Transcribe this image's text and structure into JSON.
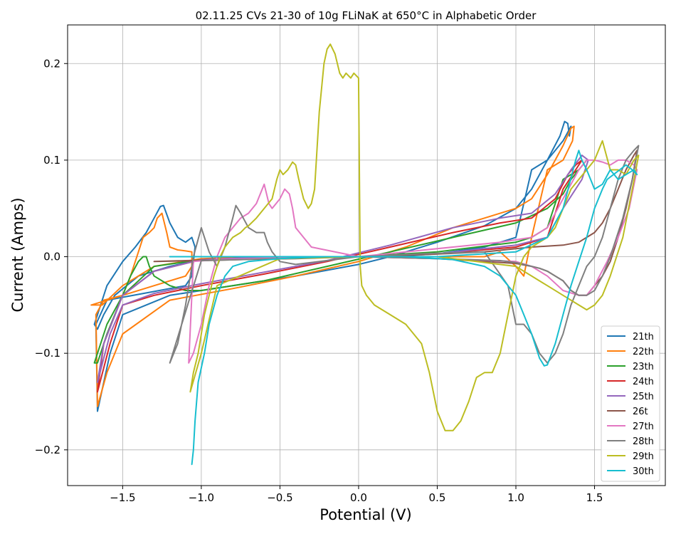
{
  "chart_data": {
    "type": "line",
    "title": "02.11.25 CVs 21-30 of 10g FLiNaK at 650°C in Alphabetic Order",
    "xlabel": "Potential (V)",
    "ylabel": "Current (Amps)",
    "xlim": [
      -1.85,
      1.95
    ],
    "ylim": [
      -0.237,
      0.24
    ],
    "x_ticks": [
      -1.5,
      -1.0,
      -0.5,
      0.0,
      0.5,
      1.0,
      1.5
    ],
    "x_tick_labels": [
      "−1.5",
      "−1.0",
      "−0.5",
      "0.0",
      "0.5",
      "1.0",
      "1.5"
    ],
    "y_ticks": [
      -0.2,
      -0.1,
      0.0,
      0.1,
      0.2
    ],
    "y_tick_labels": [
      "−0.2",
      "−0.1",
      "0.0",
      "0.1",
      "0.2"
    ],
    "grid": true,
    "legend_position": "lower-right",
    "series": [
      {
        "name": "21th",
        "color": "#1f77b4",
        "x": [
          -1.68,
          -1.6,
          -1.5,
          -1.42,
          -1.35,
          -1.3,
          -1.26,
          -1.24,
          -1.2,
          -1.15,
          -1.1,
          -1.06,
          -1.04,
          -1.06,
          -1.1,
          -1.3,
          -1.5,
          -1.6,
          -1.67,
          -1.66,
          -1.62,
          -1.58,
          -1.5,
          -1.2,
          -0.8,
          -0.4,
          0.0,
          0.2,
          0.5,
          0.8,
          1.0,
          1.1,
          1.2,
          1.28,
          1.31,
          1.33,
          1.34,
          1.35,
          1.3,
          1.2,
          1.1,
          1.0,
          0.8,
          0.5,
          0.2,
          0.0,
          -0.4,
          -0.8,
          -1.0,
          -1.2,
          -1.4,
          -1.55,
          -1.62,
          -1.66,
          -1.68
        ],
        "y": [
          -0.07,
          -0.03,
          -0.005,
          0.01,
          0.025,
          0.04,
          0.052,
          0.053,
          0.035,
          0.02,
          0.015,
          0.02,
          0.01,
          -0.02,
          -0.03,
          -0.036,
          -0.042,
          -0.045,
          -0.07,
          -0.16,
          -0.13,
          -0.1,
          -0.06,
          -0.04,
          -0.03,
          -0.02,
          -0.008,
          0.0,
          0.015,
          0.032,
          0.05,
          0.07,
          0.1,
          0.125,
          0.14,
          0.138,
          0.125,
          0.135,
          0.12,
          0.1,
          0.09,
          0.02,
          0.01,
          0.003,
          0.0,
          0.0,
          0.0,
          0.0,
          -0.003,
          -0.01,
          -0.02,
          -0.04,
          -0.06,
          -0.075,
          -0.07
        ]
      },
      {
        "name": "22th",
        "color": "#ff7f0e",
        "x": [
          -1.7,
          -1.6,
          -1.5,
          -1.45,
          -1.4,
          -1.37,
          -1.33,
          -1.3,
          -1.28,
          -1.25,
          -1.22,
          -1.2,
          -1.15,
          -1.1,
          -1.06,
          -1.06,
          -1.1,
          -1.3,
          -1.5,
          -1.62,
          -1.67,
          -1.66,
          -1.6,
          -1.5,
          -1.2,
          -0.8,
          -0.4,
          0.0,
          0.3,
          0.6,
          0.8,
          1.0,
          1.1,
          1.2,
          1.3,
          1.35,
          1.37,
          1.36,
          1.3,
          1.2,
          1.1,
          1.05,
          1.0,
          0.9,
          0.8,
          0.5,
          0.2,
          -0.2,
          -0.6,
          -1.0,
          -1.3,
          -1.5,
          -1.63,
          -1.68,
          -1.7
        ],
        "y": [
          -0.05,
          -0.045,
          -0.04,
          -0.02,
          0.005,
          0.02,
          0.025,
          0.03,
          0.04,
          0.045,
          0.025,
          0.01,
          0.007,
          0.006,
          0.005,
          -0.01,
          -0.02,
          -0.03,
          -0.04,
          -0.045,
          -0.06,
          -0.155,
          -0.12,
          -0.08,
          -0.045,
          -0.033,
          -0.02,
          -0.005,
          0.01,
          0.03,
          0.04,
          0.05,
          0.06,
          0.085,
          0.115,
          0.133,
          0.135,
          0.12,
          0.1,
          0.09,
          0.02,
          -0.02,
          -0.01,
          0.005,
          0.0,
          0.0,
          0.0,
          0.0,
          0.0,
          -0.002,
          -0.01,
          -0.03,
          -0.05,
          -0.05,
          -0.05
        ]
      },
      {
        "name": "23th",
        "color": "#2ca02c",
        "x": [
          -1.68,
          -1.6,
          -1.5,
          -1.45,
          -1.4,
          -1.37,
          -1.35,
          -1.33,
          -1.3,
          -1.25,
          -1.2,
          -1.1,
          -1.0,
          -0.6,
          -0.2,
          0.2,
          0.6,
          1.0,
          1.2,
          1.3,
          1.35,
          1.4,
          1.45,
          1.4,
          1.3,
          1.2,
          1.1,
          1.0,
          0.5,
          0.0,
          -0.5,
          -1.0,
          -1.3,
          -1.5,
          -1.6,
          -1.66,
          -1.68
        ],
        "y": [
          -0.11,
          -0.07,
          -0.04,
          -0.02,
          -0.005,
          0.0,
          0.0,
          -0.01,
          -0.02,
          -0.025,
          -0.03,
          -0.035,
          -0.035,
          -0.025,
          -0.01,
          0.005,
          0.02,
          0.035,
          0.05,
          0.065,
          0.08,
          0.09,
          0.1,
          0.09,
          0.08,
          0.03,
          0.02,
          0.015,
          0.005,
          0.0,
          0.0,
          -0.003,
          -0.01,
          -0.04,
          -0.08,
          -0.11,
          -0.11
        ]
      },
      {
        "name": "24th",
        "color": "#d62728",
        "x": [
          -1.66,
          -1.58,
          -1.5,
          -1.3,
          -1.0,
          -0.6,
          -0.2,
          0.2,
          0.6,
          0.9,
          1.1,
          1.25,
          1.33,
          1.38,
          1.42,
          1.38,
          1.3,
          1.2,
          1.1,
          1.0,
          0.5,
          0.0,
          -0.5,
          -1.0,
          -1.3,
          -1.5,
          -1.62,
          -1.66
        ],
        "y": [
          -0.14,
          -0.09,
          -0.05,
          -0.04,
          -0.03,
          -0.018,
          -0.005,
          0.01,
          0.025,
          0.035,
          0.04,
          0.06,
          0.085,
          0.095,
          0.1,
          0.09,
          0.07,
          0.02,
          0.015,
          0.01,
          0.003,
          0.0,
          0.0,
          -0.003,
          -0.015,
          -0.04,
          -0.09,
          -0.14
        ]
      },
      {
        "name": "25th",
        "color": "#9467bd",
        "x": [
          -1.66,
          -1.58,
          -1.5,
          -1.3,
          -1.0,
          -0.6,
          -0.2,
          0.2,
          0.6,
          0.9,
          1.1,
          1.25,
          1.35,
          1.42,
          1.46,
          1.42,
          1.3,
          1.2,
          1.0,
          0.5,
          0.0,
          -0.5,
          -1.0,
          -1.3,
          -1.5,
          -1.62,
          -1.66
        ],
        "y": [
          -0.13,
          -0.08,
          -0.05,
          -0.038,
          -0.028,
          -0.016,
          -0.004,
          0.012,
          0.03,
          0.04,
          0.045,
          0.065,
          0.09,
          0.105,
          0.1,
          0.08,
          0.05,
          0.02,
          0.012,
          0.003,
          0.0,
          0.0,
          -0.003,
          -0.015,
          -0.04,
          -0.09,
          -0.13
        ]
      },
      {
        "name": "26t",
        "color": "#8c564b",
        "x": [
          -1.3,
          -1.1,
          -0.8,
          -0.4,
          0.0,
          0.4,
          0.8,
          1.1,
          1.3,
          1.4,
          1.45,
          1.5,
          1.55,
          1.6,
          1.65,
          1.7,
          1.75,
          1.77,
          1.74,
          1.7,
          1.65,
          1.6,
          1.55,
          1.5,
          1.45,
          1.4,
          1.35,
          1.3,
          1.25,
          1.2,
          1.15,
          1.1,
          1.0,
          0.8,
          0.5,
          0.0,
          -0.5,
          -1.0,
          -1.3
        ],
        "y": [
          -0.005,
          -0.004,
          -0.003,
          -0.002,
          0.0,
          0.002,
          0.005,
          0.01,
          0.012,
          0.015,
          0.02,
          0.025,
          0.035,
          0.05,
          0.07,
          0.09,
          0.105,
          0.11,
          0.08,
          0.05,
          0.02,
          -0.005,
          -0.02,
          -0.03,
          -0.04,
          -0.04,
          -0.035,
          -0.025,
          -0.02,
          -0.015,
          -0.012,
          -0.01,
          -0.007,
          -0.005,
          -0.002,
          0.0,
          -0.002,
          -0.004,
          -0.005
        ]
      },
      {
        "name": "27th",
        "color": "#e377c2",
        "x": [
          -1.08,
          -1.05,
          -1.0,
          -0.95,
          -0.9,
          -0.85,
          -0.8,
          -0.75,
          -0.7,
          -0.65,
          -0.6,
          -0.57,
          -0.55,
          -0.5,
          -0.47,
          -0.44,
          -0.42,
          -0.4,
          -0.3,
          0.0,
          0.3,
          0.6,
          0.9,
          1.1,
          1.2,
          1.25,
          1.3,
          1.35,
          1.4,
          1.45,
          1.5,
          1.55,
          1.6,
          1.65,
          1.7,
          1.75,
          1.77,
          1.72,
          1.65,
          1.58,
          1.5,
          1.45,
          1.4,
          1.3,
          1.2,
          1.1,
          1.0,
          0.5,
          0.0,
          -0.5,
          -0.9,
          -1.05,
          -1.08
        ],
        "y": [
          -0.11,
          -0.1,
          -0.07,
          -0.03,
          0.0,
          0.02,
          0.03,
          0.04,
          0.045,
          0.055,
          0.075,
          0.055,
          0.05,
          0.06,
          0.07,
          0.065,
          0.05,
          0.03,
          0.01,
          0.0,
          0.005,
          0.01,
          0.015,
          0.02,
          0.03,
          0.045,
          0.06,
          0.075,
          0.09,
          0.1,
          0.1,
          0.098,
          0.095,
          0.1,
          0.1,
          0.095,
          0.09,
          0.05,
          0.02,
          -0.005,
          -0.03,
          -0.04,
          -0.04,
          -0.035,
          -0.02,
          -0.01,
          -0.005,
          -0.002,
          0.0,
          -0.001,
          -0.003,
          -0.005,
          -0.11
        ]
      },
      {
        "name": "28th",
        "color": "#7f7f7f",
        "x": [
          -1.2,
          -1.15,
          -1.1,
          -1.05,
          -1.0,
          -0.95,
          -0.9,
          -0.85,
          -0.8,
          -0.78,
          -0.75,
          -0.7,
          -0.65,
          -0.6,
          -0.58,
          -0.55,
          -0.5,
          -0.4,
          0.0,
          0.4,
          0.8,
          0.95,
          1.0,
          1.05,
          1.1,
          1.15,
          1.2,
          1.25,
          1.3,
          1.35,
          1.4,
          1.45,
          1.5,
          1.55,
          1.6,
          1.65,
          1.7,
          1.75,
          1.78,
          1.74,
          1.68,
          1.6,
          1.55,
          1.5,
          1.45,
          1.4,
          1.35,
          1.3,
          1.25,
          1.2,
          1.15,
          1.1,
          1.05,
          1.0,
          0.9,
          0.5,
          0.0,
          -0.5,
          -1.0,
          -1.2
        ],
        "y": [
          -0.11,
          -0.09,
          -0.05,
          0.0,
          0.03,
          0.005,
          -0.01,
          0.01,
          0.04,
          0.053,
          0.045,
          0.03,
          0.025,
          0.025,
          0.015,
          0.005,
          -0.005,
          -0.008,
          0.0,
          0.003,
          0.005,
          -0.03,
          -0.07,
          -0.07,
          -0.08,
          -0.1,
          -0.11,
          -0.1,
          -0.08,
          -0.05,
          -0.03,
          -0.01,
          0.0,
          0.02,
          0.05,
          0.08,
          0.1,
          0.11,
          0.115,
          0.08,
          0.04,
          0.0,
          -0.02,
          -0.035,
          -0.04,
          -0.04,
          -0.035,
          -0.025,
          -0.02,
          -0.015,
          -0.012,
          -0.01,
          -0.008,
          -0.006,
          -0.004,
          -0.002,
          0.0,
          -0.002,
          -0.004,
          -0.11
        ]
      },
      {
        "name": "29th",
        "color": "#bcbd22",
        "x": [
          -1.07,
          -1.05,
          -1.02,
          -1.0,
          -0.98,
          -0.95,
          -0.92,
          -0.88,
          -0.85,
          -0.8,
          -0.75,
          -0.72,
          -0.7,
          -0.65,
          -0.6,
          -0.55,
          -0.52,
          -0.5,
          -0.48,
          -0.45,
          -0.42,
          -0.4,
          -0.38,
          -0.35,
          -0.32,
          -0.3,
          -0.28,
          -0.25,
          -0.22,
          -0.2,
          -0.18,
          -0.15,
          -0.12,
          -0.1,
          -0.08,
          -0.05,
          -0.03,
          0.0,
          0.01,
          0.02,
          0.05,
          0.1,
          0.2,
          0.3,
          0.4,
          0.45,
          0.5,
          0.55,
          0.6,
          0.65,
          0.7,
          0.75,
          0.8,
          0.85,
          0.9,
          0.95,
          1.0,
          1.05,
          1.1,
          1.15,
          1.2,
          1.25,
          1.3,
          1.35,
          1.4,
          1.45,
          1.5,
          1.55,
          1.6,
          1.65,
          1.7,
          1.75,
          1.78,
          1.74,
          1.68,
          1.6,
          1.55,
          1.5,
          1.45,
          1.4,
          1.3,
          1.2,
          1.0,
          0.5,
          0.0,
          -0.5,
          -0.9,
          -1.0,
          -1.07
        ],
        "y": [
          -0.14,
          -0.12,
          -0.1,
          -0.08,
          -0.06,
          -0.04,
          -0.02,
          0.0,
          0.01,
          0.02,
          0.025,
          0.03,
          0.032,
          0.04,
          0.05,
          0.06,
          0.08,
          0.09,
          0.085,
          0.09,
          0.098,
          0.095,
          0.08,
          0.06,
          0.05,
          0.055,
          0.07,
          0.15,
          0.2,
          0.215,
          0.22,
          0.21,
          0.19,
          0.185,
          0.19,
          0.185,
          0.19,
          0.185,
          -0.01,
          -0.03,
          -0.04,
          -0.05,
          -0.06,
          -0.07,
          -0.09,
          -0.12,
          -0.16,
          -0.18,
          -0.18,
          -0.17,
          -0.15,
          -0.125,
          -0.12,
          -0.12,
          -0.1,
          -0.06,
          -0.02,
          0.0,
          0.01,
          0.015,
          0.02,
          0.03,
          0.05,
          0.07,
          0.08,
          0.09,
          0.1,
          0.12,
          0.09,
          0.09,
          0.085,
          0.1,
          0.105,
          0.07,
          0.02,
          -0.02,
          -0.04,
          -0.05,
          -0.055,
          -0.05,
          -0.04,
          -0.03,
          -0.01,
          0.0,
          0.0,
          -0.002,
          -0.03,
          -0.1,
          -0.14
        ]
      },
      {
        "name": "30th",
        "color": "#17becf",
        "x": [
          -1.06,
          -1.05,
          -1.04,
          -1.02,
          -1.0,
          -0.98,
          -0.95,
          -0.9,
          -0.85,
          -0.8,
          -0.7,
          -0.5,
          -0.2,
          0.0,
          0.3,
          0.6,
          0.8,
          0.9,
          0.95,
          1.0,
          1.05,
          1.1,
          1.15,
          1.18,
          1.2,
          1.25,
          1.3,
          1.35,
          1.4,
          1.45,
          1.5,
          1.55,
          1.58,
          1.62,
          1.66,
          1.7,
          1.74,
          1.77,
          1.75,
          1.7,
          1.65,
          1.6,
          1.55,
          1.5,
          1.45,
          1.42,
          1.4,
          1.38,
          1.3,
          1.2,
          1.0,
          0.5,
          0.0,
          -0.5,
          -1.0,
          -1.2
        ],
        "y": [
          -0.215,
          -0.2,
          -0.17,
          -0.13,
          -0.115,
          -0.1,
          -0.07,
          -0.04,
          -0.02,
          -0.01,
          -0.005,
          -0.002,
          0.0,
          0.0,
          0.0,
          -0.003,
          -0.01,
          -0.02,
          -0.03,
          -0.04,
          -0.06,
          -0.08,
          -0.105,
          -0.113,
          -0.112,
          -0.09,
          -0.06,
          -0.03,
          -0.005,
          0.02,
          0.05,
          0.07,
          0.08,
          0.085,
          0.09,
          0.095,
          0.09,
          0.085,
          0.09,
          0.085,
          0.08,
          0.09,
          0.075,
          0.07,
          0.09,
          0.1,
          0.11,
          0.1,
          0.05,
          0.02,
          0.005,
          0.0,
          0.0,
          0.0,
          0.0,
          0.0
        ]
      }
    ]
  }
}
